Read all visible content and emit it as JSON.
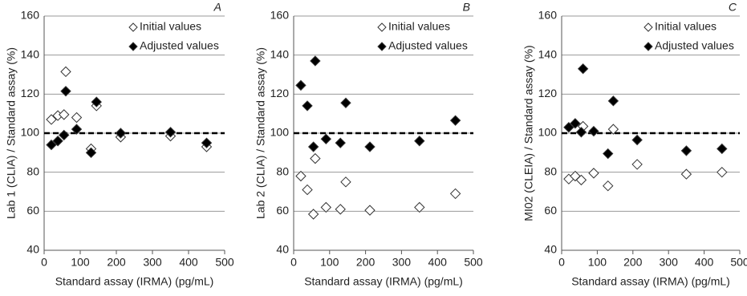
{
  "chart_data": [
    {
      "type": "scatter",
      "title": "A",
      "x_label": "Standard assay (IRMA) (pg/mL)",
      "y_label": "Lab 1 (CLIA) / Standard assay (%)",
      "xlim": [
        0,
        500
      ],
      "xticks": [
        0,
        100,
        200,
        300,
        400,
        500
      ],
      "ylim": [
        40,
        160
      ],
      "yticks": [
        40,
        60,
        80,
        100,
        120,
        140,
        160
      ],
      "grid": true,
      "hline": 100,
      "legend": "upper right",
      "x": [
        20,
        38,
        55,
        60,
        90,
        130,
        145,
        212,
        350,
        450
      ],
      "series": [
        {
          "name": "Initial values",
          "color": "#ffffff",
          "values": [
            107,
            109,
            109.5,
            131.5,
            108,
            92,
            114,
            98,
            98.5,
            93
          ]
        },
        {
          "name": "Adjusted values",
          "color": "#000000",
          "values": [
            94,
            96,
            99,
            121.5,
            102,
            90,
            116,
            100,
            100.5,
            95
          ]
        }
      ]
    },
    {
      "type": "scatter",
      "title": "B",
      "x_label": "Standard assay (IRMA) (pg/mL)",
      "y_label": "Lab 2 (CLIA) / Standard assay (%)",
      "xlim": [
        0,
        500
      ],
      "xticks": [
        0,
        100,
        200,
        300,
        400,
        500
      ],
      "ylim": [
        40,
        160
      ],
      "yticks": [
        40,
        60,
        80,
        100,
        120,
        140,
        160
      ],
      "grid": true,
      "hline": 100,
      "legend": "upper right",
      "x": [
        20,
        38,
        55,
        60,
        90,
        130,
        145,
        212,
        350,
        450
      ],
      "series": [
        {
          "name": "Initial values",
          "color": "#ffffff",
          "values": [
            78,
            71,
            58.5,
            87,
            62,
            61,
            75,
            60.5,
            62,
            69
          ]
        },
        {
          "name": "Adjusted values",
          "color": "#000000",
          "values": [
            124.5,
            114,
            93,
            137,
            97,
            95,
            115.5,
            93,
            96,
            106.5
          ]
        }
      ]
    },
    {
      "type": "scatter",
      "title": "C",
      "x_label": "Standard assay (IRMA) (pg/mL)",
      "y_label": "MI02 (CLEIA) / Standard assay (%)",
      "xlim": [
        0,
        500
      ],
      "xticks": [
        0,
        100,
        200,
        300,
        400,
        500
      ],
      "ylim": [
        40,
        160
      ],
      "yticks": [
        40,
        60,
        80,
        100,
        120,
        140,
        160
      ],
      "grid": true,
      "hline": 100,
      "legend": "upper right",
      "x": [
        20,
        38,
        55,
        60,
        90,
        130,
        145,
        212,
        350,
        450
      ],
      "series": [
        {
          "name": "Initial values",
          "color": "#ffffff",
          "values": [
            76.5,
            78,
            76,
            103.5,
            79.5,
            73,
            102,
            84,
            79,
            80
          ]
        },
        {
          "name": "Adjusted values",
          "color": "#000000",
          "values": [
            103,
            105,
            100.5,
            133,
            101,
            89.5,
            116.5,
            96.5,
            91,
            92
          ]
        }
      ]
    }
  ]
}
